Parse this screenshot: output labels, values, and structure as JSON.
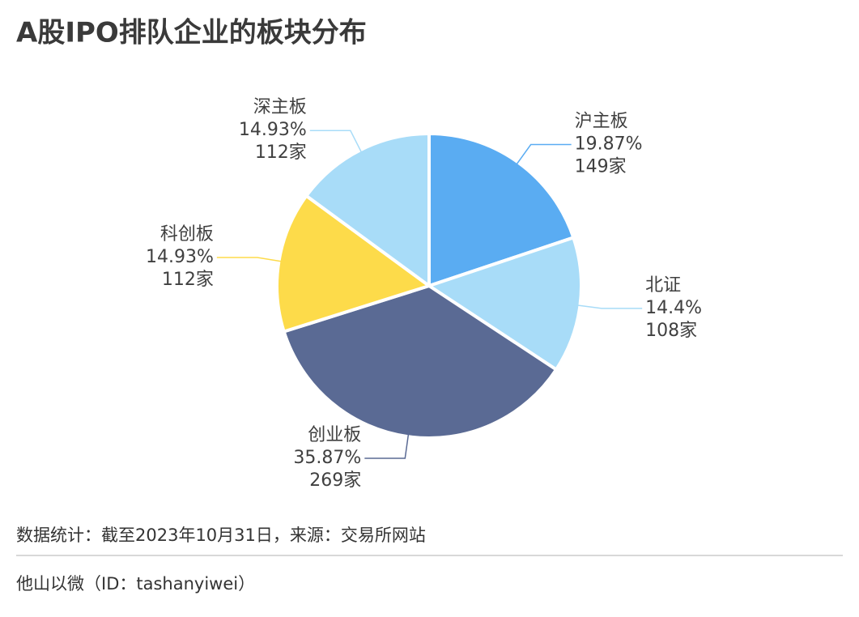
{
  "chart_data": {
    "type": "pie",
    "title": "A股IPO排队企业的板块分布",
    "categories": [
      "沪主板",
      "北证",
      "创业板",
      "科创板",
      "深主板"
    ],
    "values": [
      19.87,
      14.4,
      35.87,
      14.93,
      14.93
    ],
    "value_labels": [
      "19.87%",
      "14.4%",
      "35.87%",
      "14.93%",
      "14.93%"
    ],
    "counts": [
      149,
      108,
      269,
      112,
      112
    ],
    "count_labels": [
      "149家",
      "108家",
      "269家",
      "112家",
      "112家"
    ],
    "colors": [
      "#5aacf2",
      "#a8dcf8",
      "#5a6a94",
      "#fddb4a",
      "#a8dcf8"
    ]
  },
  "footer": {
    "source": "数据统计：截至2023年10月31日，来源：交易所网站",
    "account": "他山以微（ID：tashanyiwei）"
  }
}
